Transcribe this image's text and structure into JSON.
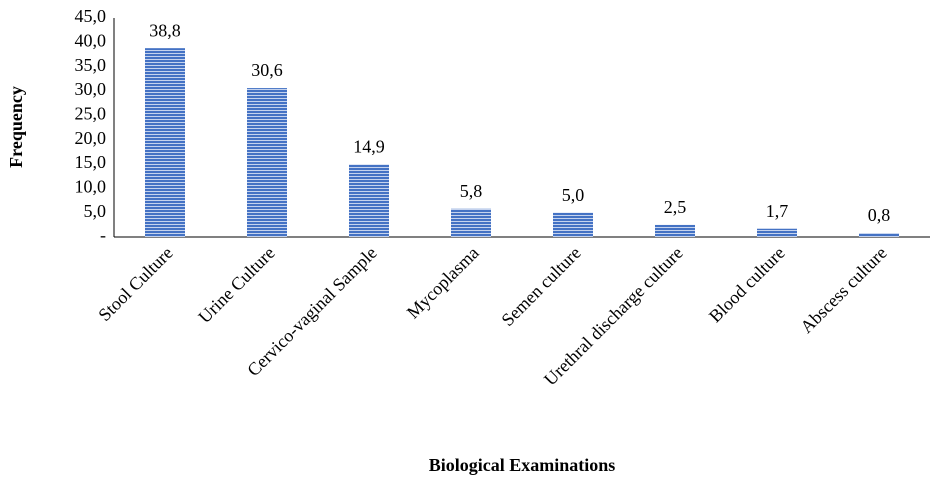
{
  "chart_data": {
    "type": "bar",
    "x_label": "Biological Examinations",
    "y_label": "Frequency",
    "categories": [
      "Stool Culture",
      "Urine Culture",
      "Cervico-vaginal Sample",
      "Mycoplasma",
      "Semen culture",
      "Urethral discharge culture",
      "Blood culture",
      "Abscess culture"
    ],
    "values": [
      38.8,
      30.6,
      14.9,
      5.8,
      5.0,
      2.5,
      1.7,
      0.8
    ],
    "value_labels": [
      "38,8",
      "30,6",
      "14,9",
      "5,8",
      "5,0",
      "2,5",
      "1,7",
      "0,8"
    ],
    "color": "#4472c4",
    "ylim": [
      0,
      45
    ],
    "yticks": [
      {
        "value": 0,
        "label": "-"
      },
      {
        "value": 5,
        "label": "5,0"
      },
      {
        "value": 10,
        "label": "10,0"
      },
      {
        "value": 15,
        "label": "15,0"
      },
      {
        "value": 20,
        "label": "20,0"
      },
      {
        "value": 25,
        "label": "25,0"
      },
      {
        "value": 30,
        "label": "30,0"
      },
      {
        "value": 35,
        "label": "35,0"
      },
      {
        "value": 40,
        "label": "40,0"
      },
      {
        "value": 45,
        "label": "45,0"
      }
    ],
    "grid": false
  }
}
